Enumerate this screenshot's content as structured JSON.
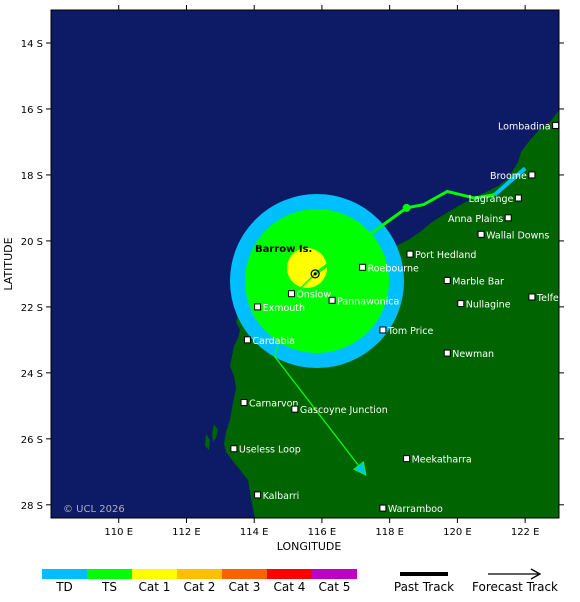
{
  "axes": {
    "ylabel": "LATITUDE",
    "xlabel": "LONGITUDE",
    "lat_ticks": [
      "14 S",
      "16 S",
      "18 S",
      "20 S",
      "22 S",
      "24 S",
      "26 S",
      "28 S"
    ],
    "lon_ticks": [
      "110 E",
      "112 E",
      "114 E",
      "116 E",
      "118 E",
      "120 E",
      "122 E"
    ]
  },
  "places": [
    {
      "name": "Lombadina",
      "lon": 122.9,
      "lat": 16.5
    },
    {
      "name": "Broome",
      "lon": 122.2,
      "lat": 18.0
    },
    {
      "name": "Lagrange",
      "lon": 121.8,
      "lat": 18.7
    },
    {
      "name": "Anna Plains",
      "lon": 121.5,
      "lat": 19.3
    },
    {
      "name": "Wallal Downs",
      "lon": 120.7,
      "lat": 19.8
    },
    {
      "name": "Port Hedland",
      "lon": 118.6,
      "lat": 20.4
    },
    {
      "name": "Roebourne",
      "lon": 117.2,
      "lat": 20.8
    },
    {
      "name": "Marble Bar",
      "lon": 119.7,
      "lat": 21.2
    },
    {
      "name": "Telfer",
      "lon": 122.2,
      "lat": 21.7
    },
    {
      "name": "Onslow",
      "lon": 115.1,
      "lat": 21.6
    },
    {
      "name": "Pannawonica",
      "lon": 116.3,
      "lat": 21.8
    },
    {
      "name": "Nullagine",
      "lon": 120.1,
      "lat": 21.9
    },
    {
      "name": "Exmouth",
      "lon": 114.1,
      "lat": 22.0
    },
    {
      "name": "Tom Price",
      "lon": 117.8,
      "lat": 22.7
    },
    {
      "name": "Cardabia",
      "lon": 113.8,
      "lat": 23.0
    },
    {
      "name": "Newman",
      "lon": 119.7,
      "lat": 23.4
    },
    {
      "name": "Carnarvon",
      "lon": 113.7,
      "lat": 24.9
    },
    {
      "name": "Gascoyne Junction",
      "lon": 115.2,
      "lat": 25.1
    },
    {
      "name": "Useless Loop",
      "lon": 113.4,
      "lat": 26.3
    },
    {
      "name": "Meekatharra",
      "lon": 118.5,
      "lat": 26.6
    },
    {
      "name": "Kalbarri",
      "lon": 114.1,
      "lat": 27.7
    },
    {
      "name": "Warramboo",
      "lon": 117.8,
      "lat": 28.1
    }
  ],
  "island_label": "Barrow Is.",
  "copyright": "© UCL 2026",
  "legend": {
    "categories": [
      {
        "label": "TD",
        "color": "#00bfff"
      },
      {
        "label": "TS",
        "color": "#00ff00"
      },
      {
        "label": "Cat 1",
        "color": "#ffff00"
      },
      {
        "label": "Cat 2",
        "color": "#ffc000"
      },
      {
        "label": "Cat 3",
        "color": "#ff6000"
      },
      {
        "label": "Cat 4",
        "color": "#ff0000"
      },
      {
        "label": "Cat 5",
        "color": "#c000c0"
      }
    ],
    "past_track": "Past Track",
    "forecast_track": "Forecast Track"
  },
  "map_colors": {
    "ocean": "#0d1a66",
    "land": "#006400",
    "td_ring": "#00bfff",
    "ts_ring": "#00ff00",
    "cat1_ring": "#ffff00"
  },
  "storm": {
    "center": {
      "lon": 115.8,
      "lat": 21.0
    },
    "past_track": [
      {
        "lon": 122.0,
        "lat": 17.8
      },
      {
        "lon": 121.1,
        "lat": 18.6
      },
      {
        "lon": 120.5,
        "lat": 18.7
      },
      {
        "lon": 119.7,
        "lat": 18.5
      },
      {
        "lon": 119.0,
        "lat": 18.9
      },
      {
        "lon": 118.5,
        "lat": 19.0
      },
      {
        "lon": 115.8,
        "lat": 21.0
      }
    ],
    "forecast_track": [
      {
        "lon": 115.8,
        "lat": 21.0
      },
      {
        "lon": 115.1,
        "lat": 21.7
      },
      {
        "lon": 114.6,
        "lat": 23.5
      },
      {
        "lon": 117.3,
        "lat": 27.1
      }
    ]
  }
}
